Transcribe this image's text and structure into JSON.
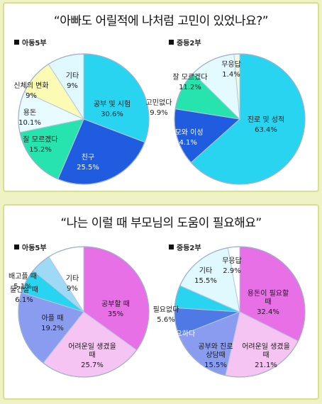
{
  "chart_data": [
    {
      "type": "pie",
      "title": "“아빠도 어릴적에 나처럼 고민이 있었나요?”",
      "subtitle": "아동5부",
      "slices": [
        {
          "label": "공부 및 시험",
          "value": "30.6%",
          "pct": 30.6,
          "color": "#28d4f0"
        },
        {
          "label": "친구",
          "value": "25.5%",
          "pct": 25.5,
          "color": "#1f5ce0"
        },
        {
          "label": "잘 모르겠다",
          "value": "15.2%",
          "pct": 15.2,
          "color": "#27e3ad"
        },
        {
          "label": "용돈",
          "value": "10.1%",
          "pct": 10.1,
          "color": "#e8fbff"
        },
        {
          "label": "신체의 변화",
          "value": "9%",
          "pct": 9.0,
          "color": "#fbfbb4"
        },
        {
          "label": "기타",
          "value": "9%",
          "pct": 9.0,
          "color": "#dff9ff"
        }
      ]
    },
    {
      "type": "pie",
      "title": "",
      "subtitle": "중등2부",
      "slices": [
        {
          "label": "진로 및 성적",
          "value": "63.4%",
          "pct": 63.4,
          "color": "#28d4f0"
        },
        {
          "label": "외모와 이성",
          "value": "14.1%",
          "pct": 14.1,
          "color": "#1f5ce0"
        },
        {
          "label": "고민없다",
          "value": "9.9%",
          "pct": 9.9,
          "color": "#27e3ad"
        },
        {
          "label": "잘 모르겠다",
          "value": "11.2%",
          "pct": 11.2,
          "color": "#e3fbff"
        },
        {
          "label": "무응답",
          "value": "1.4%",
          "pct": 1.4,
          "color": "#f3f9dc"
        }
      ]
    },
    {
      "type": "pie",
      "title": "“나는 이럴 때 부모님의 도움이 필요해요”",
      "subtitle": "아동5부",
      "slices": [
        {
          "label": "공부할 때",
          "value": "35%",
          "pct": 35.0,
          "color": "#e870e6"
        },
        {
          "label": "어려운일 생겼을 때",
          "value": "25.7%",
          "pct": 25.7,
          "color": "#f6c4f2"
        },
        {
          "label": "아플 때",
          "value": "19.2%",
          "pct": 19.2,
          "color": "#8a9cf0"
        },
        {
          "label": "물건살 때",
          "value": "6.1%",
          "pct": 6.1,
          "color": "#28d4f0"
        },
        {
          "label": "배고플 때",
          "value": "5.1%",
          "pct": 5.1,
          "color": "#9ed9f6"
        },
        {
          "label": "기타",
          "value": "9%",
          "pct": 9.0,
          "color": "#ffffff"
        }
      ]
    },
    {
      "type": "pie",
      "title": "",
      "subtitle": "중등2부",
      "slices": [
        {
          "label": "용돈이 필요할 때",
          "value": "32.4%",
          "pct": 32.4,
          "color": "#e870e6"
        },
        {
          "label": "어려운일 생겼을 때",
          "value": "21.1%",
          "pct": 21.1,
          "color": "#f6c4f2"
        },
        {
          "label": "공부와 진로 상담때",
          "value": "15.5%",
          "pct": 15.5,
          "color": "#8a9cf0"
        },
        {
          "label": "항상 필요하다",
          "value": "7%",
          "pct": 7.0,
          "color": "#4f7ae6"
        },
        {
          "label": "필요없다",
          "value": "5.6%",
          "pct": 5.6,
          "color": "#28d4f0"
        },
        {
          "label": "기타",
          "value": "15.5%",
          "pct": 15.5,
          "color": "#dff9ff"
        },
        {
          "label": "무응답",
          "value": "2.9%",
          "pct": 2.9,
          "color": "#ffffff"
        }
      ]
    }
  ]
}
